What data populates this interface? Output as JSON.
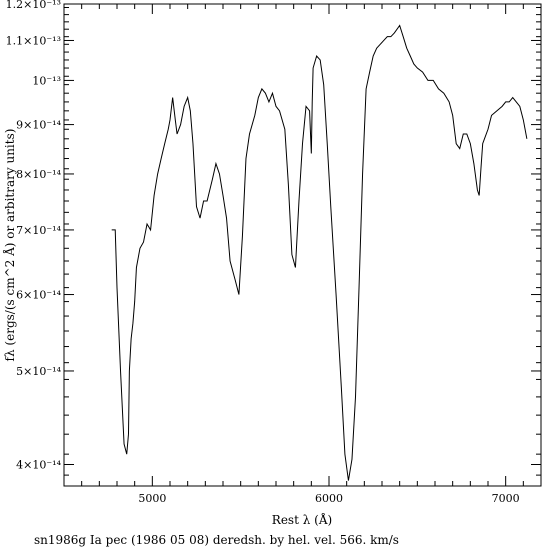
{
  "colors": {
    "foreground": "#000000",
    "background": "#ffffff"
  },
  "chart_data": {
    "type": "line",
    "title": "",
    "caption": "sn1986g Ia pec (1986 05 08) deredsh. by hel. vel.   566. km/s",
    "xlabel": "Rest λ (Å)",
    "ylabel": "fλ (ergs/(s cm^2 Å) or arbitrary units)",
    "xlim": [
      4500,
      7200
    ],
    "ylim": [
      3.8e-14,
      1.2e-13
    ],
    "yscale": "log",
    "grid": false,
    "xticks": [
      5000,
      6000,
      7000
    ],
    "xtick_labels": [
      "5000",
      "6000",
      "7000"
    ],
    "yticks": [
      4e-14,
      5e-14,
      6e-14,
      7e-14,
      8e-14,
      9e-14,
      1e-13,
      1.1e-13,
      1.2e-13
    ],
    "ytick_labels": [
      "4×10⁻¹⁴",
      "5×10⁻¹⁴",
      "6×10⁻¹⁴",
      "7×10⁻¹⁴",
      "8×10⁻¹⁴",
      "9×10⁻¹⁴",
      "10⁻¹³",
      "1.1×10⁻¹³",
      "1.2×10⁻¹³"
    ],
    "series": [
      {
        "x": [
          4770,
          4790,
          4800,
          4820,
          4840,
          4855,
          4865,
          4870,
          4880,
          4890,
          4900,
          4910,
          4930,
          4950,
          4970,
          4990,
          5010,
          5030,
          5050,
          5070,
          5090,
          5100,
          5115,
          5130,
          5140,
          5160,
          5180,
          5200,
          5215,
          5230,
          5250,
          5270,
          5290,
          5310,
          5340,
          5360,
          5380,
          5400,
          5420,
          5440,
          5470,
          5490,
          5510,
          5530,
          5550,
          5580,
          5600,
          5620,
          5640,
          5660,
          5680,
          5700,
          5720,
          5750,
          5770,
          5790,
          5810,
          5830,
          5850,
          5870,
          5890,
          5900,
          5905,
          5910,
          5930,
          5950,
          5970,
          5990,
          6010,
          6040,
          6070,
          6090,
          6110,
          6130,
          6150,
          6170,
          6190,
          6210,
          6230,
          6250,
          6270,
          6290,
          6310,
          6330,
          6350,
          6370,
          6400,
          6420,
          6440,
          6460,
          6480,
          6500,
          6530,
          6560,
          6590,
          6620,
          6650,
          6680,
          6700,
          6720,
          6740,
          6760,
          6780,
          6800,
          6820,
          6840,
          6850,
          6860,
          6870,
          6880,
          6900,
          6920,
          6950,
          6980,
          7000,
          7020,
          7040,
          7060,
          7080,
          7100,
          7120
        ],
        "values": [
          7e-14,
          7e-14,
          6.1e-14,
          5e-14,
          4.2e-14,
          4.1e-14,
          4.3e-14,
          5e-14,
          5.4e-14,
          5.6e-14,
          5.9e-14,
          6.4e-14,
          6.7e-14,
          6.8e-14,
          7.1e-14,
          7e-14,
          7.6e-14,
          8e-14,
          8.3e-14,
          8.6e-14,
          8.9e-14,
          9.1e-14,
          9.6e-14,
          9.1e-14,
          8.8e-14,
          9e-14,
          9.4e-14,
          9.6e-14,
          9.3e-14,
          8.6e-14,
          7.4e-14,
          7.2e-14,
          7.5e-14,
          7.5e-14,
          7.9e-14,
          8.2e-14,
          8e-14,
          7.6e-14,
          7.2e-14,
          6.5e-14,
          6.2e-14,
          6e-14,
          6.9e-14,
          8.3e-14,
          8.8e-14,
          9.2e-14,
          9.6e-14,
          9.8e-14,
          9.7e-14,
          9.5e-14,
          9.7e-14,
          9.4e-14,
          9.3e-14,
          8.9e-14,
          7.8e-14,
          6.6e-14,
          6.4e-14,
          7.5e-14,
          8.6e-14,
          9.4e-14,
          9.3e-14,
          8.4e-14,
          9.5e-14,
          1.03e-13,
          1.06e-13,
          1.05e-13,
          9.9e-14,
          8.6e-14,
          7.4e-14,
          6e-14,
          4.8e-14,
          4.1e-14,
          3.85e-14,
          4.05e-14,
          4.7e-14,
          6.1e-14,
          8e-14,
          9.8e-14,
          1.02e-13,
          1.06e-13,
          1.08e-13,
          1.09e-13,
          1.1e-13,
          1.11e-13,
          1.11e-13,
          1.12e-13,
          1.14e-13,
          1.11e-13,
          1.08e-13,
          1.06e-13,
          1.04e-13,
          1.03e-13,
          1.02e-13,
          1e-13,
          1e-13,
          9.8e-14,
          9.7e-14,
          9.5e-14,
          9.2e-14,
          8.6e-14,
          8.5e-14,
          8.8e-14,
          8.8e-14,
          8.6e-14,
          8.2e-14,
          7.7e-14,
          7.6e-14,
          8.1e-14,
          8.6e-14,
          8.7e-14,
          8.9e-14,
          9.2e-14,
          9.3e-14,
          9.4e-14,
          9.5e-14,
          9.5e-14,
          9.6e-14,
          9.5e-14,
          9.4e-14,
          9.1e-14,
          8.7e-14
        ]
      }
    ]
  }
}
